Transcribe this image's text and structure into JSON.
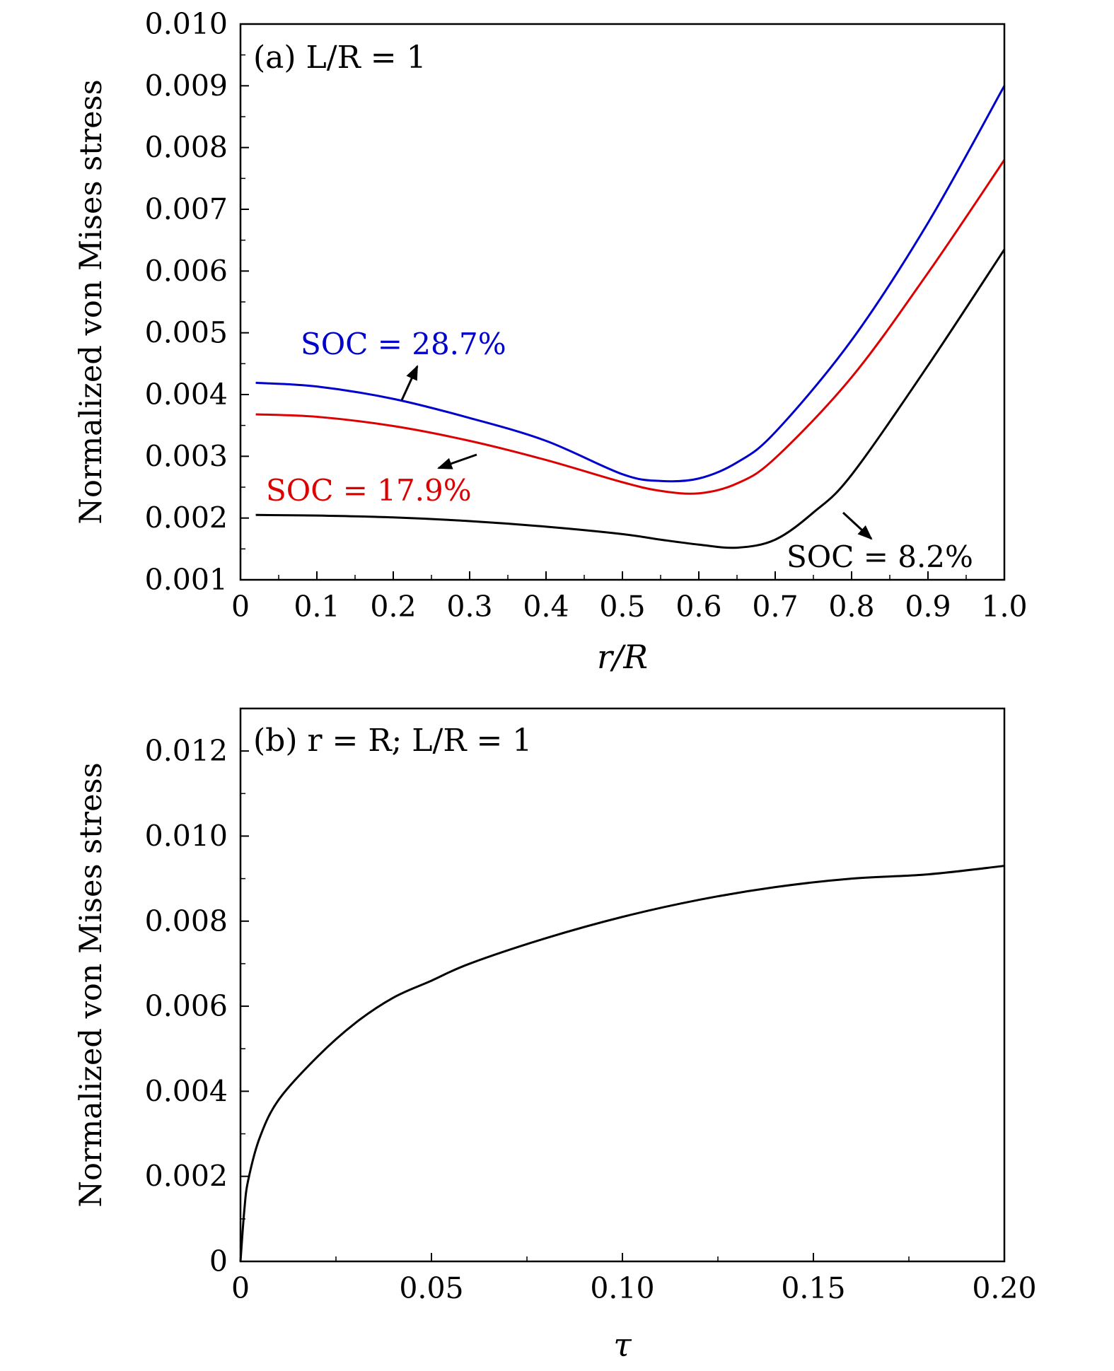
{
  "chart_data": [
    {
      "type": "line",
      "title": "(a)   L/R = 1",
      "xlabel": "r/R",
      "ylabel": "Normalized von Mises stress",
      "xlim": [
        0,
        1.0
      ],
      "ylim": [
        0.001,
        0.01
      ],
      "x_ticks": [
        "0",
        "0.1",
        "0.2",
        "0.3",
        "0.4",
        "0.5",
        "0.6",
        "0.7",
        "0.8",
        "0.9",
        "1.0"
      ],
      "y_ticks": [
        "0.001",
        "0.002",
        "0.003",
        "0.004",
        "0.005",
        "0.006",
        "0.007",
        "0.008",
        "0.009",
        "0.010"
      ],
      "grid": false,
      "series": [
        {
          "name": "SOC = 28.7%",
          "color": "#0000cc",
          "x": [
            0.02,
            0.1,
            0.2,
            0.3,
            0.4,
            0.5,
            0.55,
            0.6,
            0.65,
            0.7,
            0.8,
            0.9,
            1.0
          ],
          "y": [
            0.00419,
            0.00413,
            0.00393,
            0.00362,
            0.00325,
            0.00271,
            0.0026,
            0.00264,
            0.0029,
            0.00339,
            0.00488,
            0.00678,
            0.009
          ]
        },
        {
          "name": "SOC = 17.9%",
          "color": "#dd0000",
          "x": [
            0.02,
            0.1,
            0.2,
            0.3,
            0.4,
            0.5,
            0.55,
            0.6,
            0.65,
            0.7,
            0.8,
            0.9,
            1.0
          ],
          "y": [
            0.00368,
            0.00364,
            0.00349,
            0.00325,
            0.00294,
            0.00258,
            0.00244,
            0.0024,
            0.00256,
            0.00297,
            0.00428,
            0.00597,
            0.0078
          ]
        },
        {
          "name": "SOC = 8.2%",
          "color": "#000000",
          "x": [
            0.02,
            0.1,
            0.2,
            0.3,
            0.4,
            0.5,
            0.55,
            0.6,
            0.65,
            0.7,
            0.75,
            0.8,
            0.9,
            1.0
          ],
          "y": [
            0.00205,
            0.00204,
            0.00201,
            0.00195,
            0.00186,
            0.00174,
            0.00165,
            0.00157,
            0.00152,
            0.00165,
            0.00209,
            0.0027,
            0.00447,
            0.00635
          ]
        }
      ],
      "annotations": [
        {
          "text": "SOC = 28.7%",
          "color": "#0000cc"
        },
        {
          "text": "SOC = 17.9%",
          "color": "#dd0000"
        },
        {
          "text": "SOC = 8.2%",
          "color": "#000000"
        }
      ]
    },
    {
      "type": "line",
      "title": "(b)   r = R; L/R = 1",
      "xlabel": "τ",
      "ylabel": "Normalized von Mises stress",
      "xlim": [
        0,
        0.2
      ],
      "ylim": [
        0,
        0.013
      ],
      "x_ticks": [
        "0",
        "0.05",
        "0.10",
        "0.15",
        "0.20"
      ],
      "y_ticks": [
        "0",
        "0.002",
        "0.004",
        "0.006",
        "0.008",
        "0.010",
        "0.012"
      ],
      "grid": false,
      "series": [
        {
          "color": "#000000",
          "x": [
            0,
            0.001,
            0.002,
            0.005,
            0.01,
            0.02,
            0.03,
            0.04,
            0.05,
            0.06,
            0.08,
            0.1,
            0.12,
            0.14,
            0.16,
            0.18,
            0.2
          ],
          "y": [
            0,
            0.0012,
            0.0019,
            0.0029,
            0.0038,
            0.0048,
            0.0056,
            0.0062,
            0.0066,
            0.007,
            0.0076,
            0.0081,
            0.0085,
            0.0088,
            0.009,
            0.0091,
            0.0093
          ]
        }
      ]
    }
  ]
}
